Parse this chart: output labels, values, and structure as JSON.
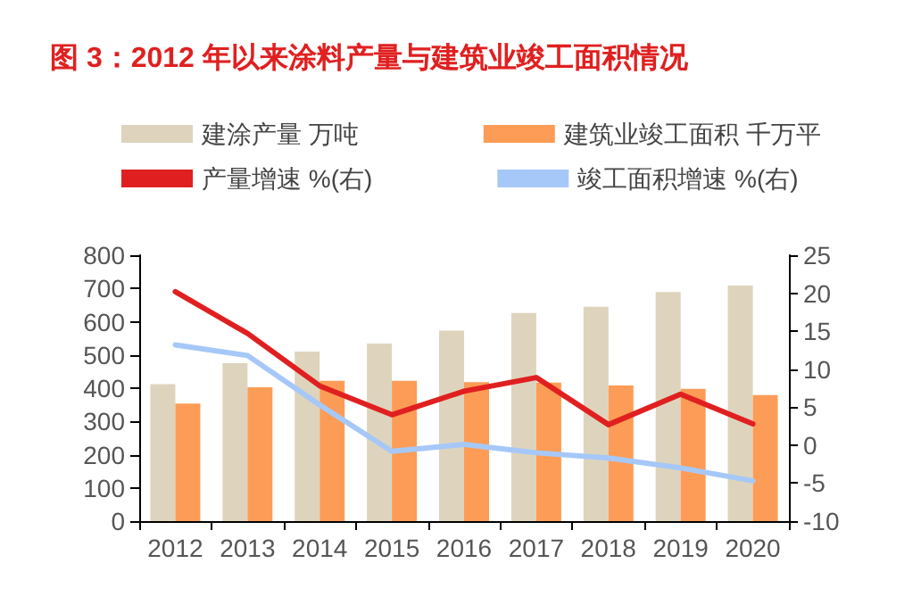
{
  "chart_data": {
    "type": "bar",
    "title": "图 3：2012 年以来涂料产量与建筑业竣工面积情况",
    "categories": [
      "2012",
      "2013",
      "2014",
      "2015",
      "2016",
      "2017",
      "2018",
      "2019",
      "2020"
    ],
    "series": [
      {
        "name": "建涂产量 万吨",
        "color": "#ded4bd",
        "values": [
          412,
          475,
          510,
          534,
          573,
          626,
          645,
          689,
          709
        ]
      },
      {
        "name": "建筑业竣工面积 千万平",
        "color": "#fd9c56",
        "values": [
          354,
          403,
          422,
          422,
          418,
          417,
          408,
          398,
          379
        ]
      },
      {
        "name": "产量增速 %(右)",
        "type": "line",
        "axis": "y2",
        "color": "#e02020",
        "values": [
          20.2,
          14.7,
          7.8,
          4,
          7.1,
          8.9,
          2.7,
          6.7,
          2.8
        ]
      },
      {
        "name": "竣工面积增速 %(右)",
        "type": "line",
        "axis": "y2",
        "color": "#a6c8f8",
        "values": [
          13.2,
          11.8,
          5.3,
          -0.8,
          0.1,
          -1,
          -1.7,
          -3,
          -4.7
        ]
      }
    ],
    "ylim": [
      0,
      800
    ],
    "yticks": [
      0,
      100,
      200,
      300,
      400,
      500,
      600,
      700,
      800
    ],
    "y2lim": [
      -10,
      25
    ],
    "y2ticks": [
      -10,
      -5,
      0,
      5,
      10,
      15,
      20,
      25
    ],
    "legend": "top",
    "grid": false,
    "marker": "none",
    "line_style": "solid"
  }
}
